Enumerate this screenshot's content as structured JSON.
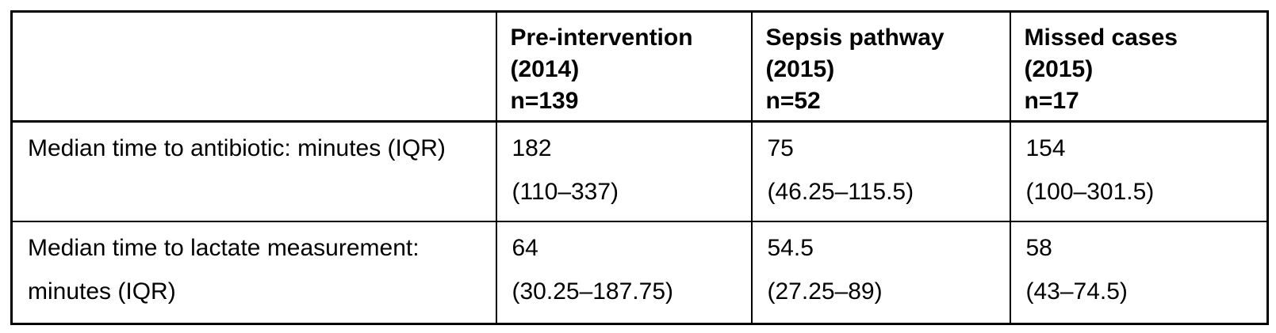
{
  "page": {
    "background_color": "#ffffff",
    "text_color": "#000000",
    "border_color": "#000000"
  },
  "table": {
    "header": [
      {
        "lines": [
          "",
          "",
          ""
        ]
      },
      {
        "lines": [
          "Pre-intervention",
          "(2014)",
          "n=139"
        ]
      },
      {
        "lines": [
          "Sepsis pathway",
          "(2015)",
          "n=52"
        ]
      },
      {
        "lines": [
          "Missed cases",
          "(2015)",
          "n=17"
        ]
      }
    ],
    "rows": [
      {
        "label": "Median time to antibiotic: minutes (IQR)",
        "cells": [
          {
            "value": "182",
            "iqr": "(110–337)"
          },
          {
            "value": "75",
            "iqr": "(46.25–115.5)"
          },
          {
            "value": "154",
            "iqr": "(100–301.5)"
          }
        ]
      },
      {
        "label": "Median time to lactate measurement: minutes (IQR)",
        "cells": [
          {
            "value": "64",
            "iqr": "(30.25–187.75)"
          },
          {
            "value": "54.5",
            "iqr": "(27.25–89)"
          },
          {
            "value": "58",
            "iqr": "(43–74.5)"
          }
        ]
      }
    ]
  },
  "chart_data": {
    "type": "table",
    "columns": [
      "",
      "Pre-intervention (2014) n=139",
      "Sepsis pathway (2015) n=52",
      "Missed cases (2015) n=17"
    ],
    "rows": [
      [
        "Median time to antibiotic: minutes (IQR)",
        "182 (110–337)",
        "75 (46.25–115.5)",
        "154 (100–301.5)"
      ],
      [
        "Median time to lactate measurement: minutes (IQR)",
        "64 (30.25–187.75)",
        "54.5 (27.25–89)",
        "58 (43–74.5)"
      ]
    ]
  }
}
